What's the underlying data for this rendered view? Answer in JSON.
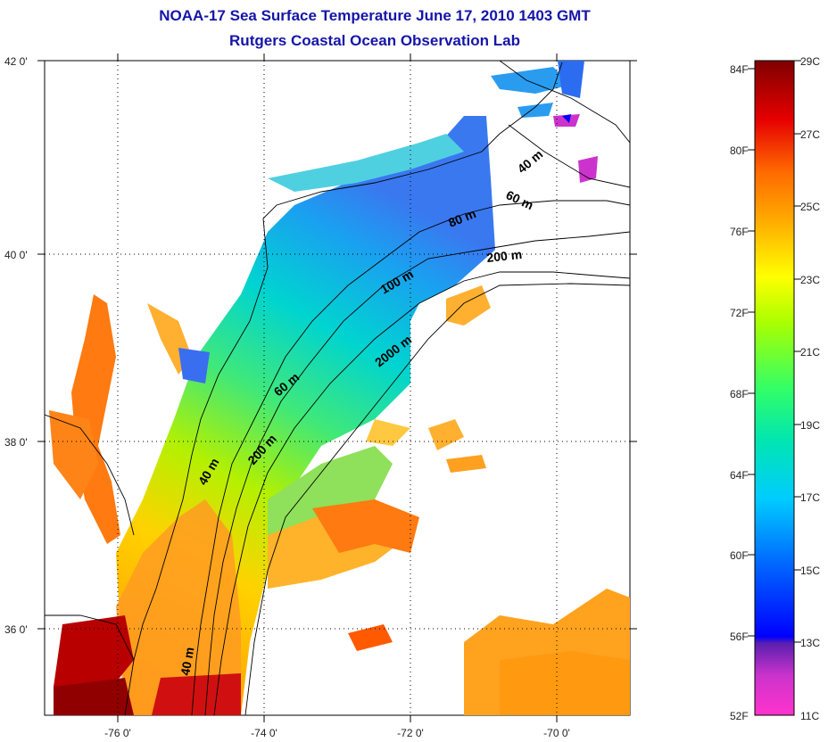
{
  "title": "NOAA-17 Sea Surface Temperature June 17, 2010 1403 GMT",
  "subtitle": "Rutgers Coastal Ocean Observation Lab",
  "map": {
    "lat_ticks": [
      "42 0'",
      "40 0'",
      "38 0'",
      "36 0'"
    ],
    "lon_ticks": [
      "-76 0'",
      "-74 0'",
      "-72 0'",
      "-70 0'"
    ],
    "lat_values": [
      42,
      40,
      38,
      36
    ],
    "lon_values": [
      -76,
      -74,
      -72,
      -70
    ],
    "lat_range": [
      35.0,
      42.0
    ],
    "lon_range": [
      -77.0,
      -69.0
    ],
    "grid": "dotted",
    "isobath_labels": [
      "40 m",
      "60 m",
      "80 m",
      "200 m",
      "100 m",
      "2000 m",
      "60 m",
      "40 m",
      "200 m",
      "40 m"
    ]
  },
  "colorbar": {
    "fahrenheit_labels": [
      "84F",
      "80F",
      "76F",
      "72F",
      "68F",
      "64F",
      "60F",
      "56F",
      "52F"
    ],
    "celsius_labels": [
      "29C",
      "27C",
      "25C",
      "23C",
      "21C",
      "19C",
      "17C",
      "15C",
      "13C",
      "11C"
    ],
    "range_c": [
      11,
      29
    ],
    "colors": [
      "#ff33cc",
      "#9933cc",
      "#0000ff",
      "#0099ff",
      "#00e5e5",
      "#33ff66",
      "#ccff00",
      "#ffff00",
      "#ffaa00",
      "#ff5500",
      "#e60000",
      "#800000"
    ]
  },
  "colors": {
    "title": "#1515a8",
    "land": "#ffffff",
    "coastline": "#000000"
  }
}
